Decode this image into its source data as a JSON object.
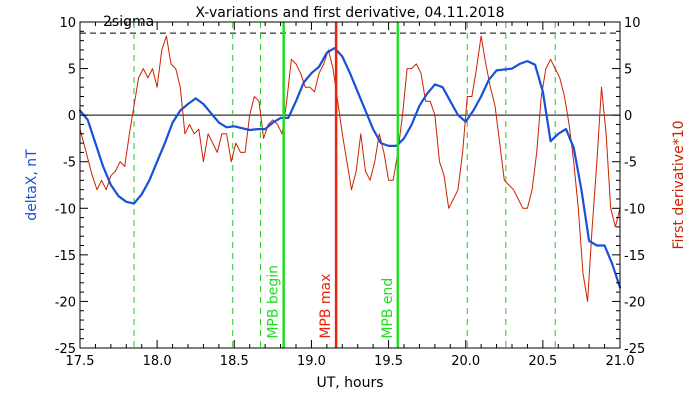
{
  "chart_data": {
    "type": "line",
    "title": "X-variations and first derivative, 04.11.2018",
    "xlabel": "UT, hours",
    "ylabel_left": "deltaX, nT",
    "ylabel_right": "First derivative*10",
    "xlim": [
      17.5,
      21.0
    ],
    "ylim_left": [
      -25,
      10
    ],
    "ylim_right": [
      -25,
      10
    ],
    "x_ticks": [
      "17.5",
      "18.0",
      "18.5",
      "19.0",
      "19.5",
      "20.0",
      "20.5",
      "21.0"
    ],
    "x_tick_values": [
      17.5,
      18.0,
      18.5,
      19.0,
      19.5,
      20.0,
      20.5,
      21.0
    ],
    "y_ticks": [
      "10",
      "5",
      "0",
      "-5",
      "-10",
      "-15",
      "-20",
      "-25"
    ],
    "y_tick_values": [
      10,
      5,
      0,
      -5,
      -10,
      -15,
      -20,
      -25
    ],
    "sigma_label": "2sigma",
    "sigma_level": 8.8,
    "grid": false,
    "colors": {
      "deltaX": "#1a4fd8",
      "derivative": "#cc2200",
      "mpb_max": "#e8240a",
      "mpb_edges": "#22dd22",
      "dashed_markers": "#22cc22"
    },
    "vertical_markers": {
      "dashed": [
        17.85,
        18.49,
        18.67,
        20.01,
        20.26,
        20.58
      ],
      "mpb_begin": {
        "x": 18.82,
        "label": "MPB begin"
      },
      "mpb_max": {
        "x": 19.16,
        "label": "MPB max"
      },
      "mpb_end": {
        "x": 19.56,
        "label": "MPB end"
      }
    },
    "series": [
      {
        "name": "deltaX, nT",
        "x": [
          17.5,
          17.55,
          17.6,
          17.65,
          17.7,
          17.75,
          17.8,
          17.85,
          17.9,
          17.95,
          18.0,
          18.05,
          18.1,
          18.15,
          18.2,
          18.25,
          18.3,
          18.35,
          18.4,
          18.45,
          18.5,
          18.55,
          18.6,
          18.65,
          18.7,
          18.75,
          18.8,
          18.85,
          18.9,
          18.95,
          19.0,
          19.05,
          19.1,
          19.15,
          19.2,
          19.25,
          19.3,
          19.35,
          19.4,
          19.45,
          19.5,
          19.55,
          19.6,
          19.65,
          19.7,
          19.75,
          19.8,
          19.85,
          19.9,
          19.95,
          20.0,
          20.05,
          20.1,
          20.15,
          20.2,
          20.25,
          20.3,
          20.35,
          20.4,
          20.45,
          20.5,
          20.55,
          20.6,
          20.65,
          20.7,
          20.75,
          20.8,
          20.85,
          20.9,
          20.95,
          21.0
        ],
        "values": [
          0.5,
          -0.5,
          -3,
          -5.5,
          -7.5,
          -8.7,
          -9.3,
          -9.5,
          -8.5,
          -7,
          -5,
          -3,
          -0.8,
          0.5,
          1.2,
          1.8,
          1.2,
          0.2,
          -0.8,
          -1.3,
          -1.2,
          -1.4,
          -1.6,
          -1.5,
          -1.5,
          -0.8,
          -0.3,
          -0.3,
          1.5,
          3.5,
          4.5,
          5.2,
          6.7,
          7.2,
          6.3,
          4.5,
          2.5,
          0.5,
          -1.5,
          -3.0,
          -3.3,
          -3.3,
          -2.5,
          -1,
          1,
          2.3,
          3.3,
          3.0,
          1.5,
          0,
          -0.7,
          0.5,
          2,
          3.8,
          4.8,
          4.9,
          5.0,
          5.5,
          5.8,
          5.4,
          2.5,
          -2.8,
          -2.0,
          -1.5,
          -3.5,
          -8,
          -13.5,
          -14,
          -14,
          -16,
          -18.5
        ]
      },
      {
        "name": "First derivative*10",
        "x": [
          17.5,
          17.54,
          17.58,
          17.61,
          17.64,
          17.67,
          17.7,
          17.73,
          17.76,
          17.79,
          17.82,
          17.85,
          17.88,
          17.91,
          17.94,
          17.97,
          18.0,
          18.03,
          18.06,
          18.09,
          18.12,
          18.15,
          18.18,
          18.21,
          18.24,
          18.27,
          18.3,
          18.33,
          18.36,
          18.39,
          18.42,
          18.45,
          18.48,
          18.51,
          18.54,
          18.57,
          18.6,
          18.63,
          18.66,
          18.69,
          18.72,
          18.75,
          18.78,
          18.81,
          18.84,
          18.87,
          18.9,
          18.93,
          18.96,
          18.99,
          19.02,
          19.05,
          19.08,
          19.11,
          19.14,
          19.17,
          19.2,
          19.23,
          19.26,
          19.29,
          19.32,
          19.35,
          19.38,
          19.41,
          19.44,
          19.47,
          19.5,
          19.53,
          19.56,
          19.59,
          19.62,
          19.65,
          19.68,
          19.71,
          19.74,
          19.77,
          19.8,
          19.83,
          19.86,
          19.89,
          19.92,
          19.95,
          19.98,
          20.01,
          20.04,
          20.07,
          20.1,
          20.13,
          20.16,
          20.19,
          20.22,
          20.25,
          20.28,
          20.31,
          20.34,
          20.37,
          20.4,
          20.43,
          20.46,
          20.49,
          20.52,
          20.55,
          20.58,
          20.61,
          20.64,
          20.67,
          20.7,
          20.73,
          20.76,
          20.79,
          20.82,
          20.85,
          20.88,
          20.91,
          20.94,
          20.97,
          21.0
        ],
        "values": [
          -1.5,
          -4,
          -6.5,
          -8,
          -7,
          -8,
          -6.5,
          -6,
          -5,
          -5.5,
          -2,
          1,
          4,
          5,
          4,
          5,
          3,
          7,
          8.5,
          5.5,
          5,
          3,
          -2,
          -1,
          -2,
          -1.5,
          -5,
          -2,
          -3,
          -4,
          -2,
          -2,
          -5,
          -3,
          -4,
          -4,
          0,
          2,
          1.5,
          -2.5,
          -1,
          -0.5,
          -1,
          -2,
          1.5,
          6,
          5.5,
          4.5,
          3,
          3,
          2.5,
          4.5,
          5.5,
          7,
          5,
          1.5,
          -2,
          -5,
          -8,
          -6,
          -2,
          -6,
          -7,
          -5,
          -2,
          -4,
          -7,
          -7,
          -4,
          0,
          5,
          5,
          5.5,
          4.5,
          1.5,
          1.5,
          0,
          -5,
          -6.5,
          -10,
          -9,
          -8,
          -4,
          2,
          2,
          5,
          8.5,
          5.5,
          3,
          1,
          -3,
          -7,
          -7.5,
          -8,
          -9,
          -10,
          -10,
          -8,
          -4,
          2,
          5,
          6,
          5,
          4,
          2,
          -1,
          -5,
          -10,
          -17,
          -20,
          -12,
          -5,
          3,
          -2,
          -10,
          -12,
          -10
        ]
      }
    ]
  }
}
